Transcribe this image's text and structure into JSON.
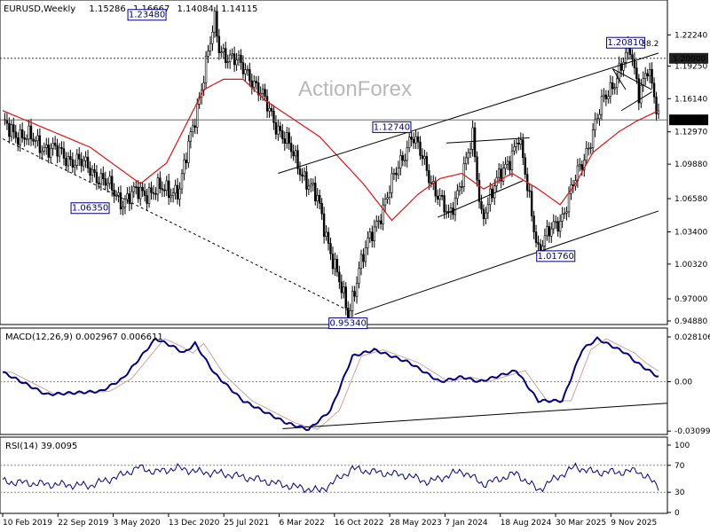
{
  "header": {
    "symbol": "EURUSD,Weekly",
    "ohlc": [
      "1.15286",
      "1.16667",
      "1.14084",
      "1.14115"
    ]
  },
  "watermark": "ActionForex",
  "colors": {
    "candles": "#000000",
    "ma": "#e01010",
    "macd": "#000080",
    "signal": "#d0a0a0",
    "rsi": "#000080",
    "box_border": "#000080"
  },
  "chart_data": [
    {
      "type": "candlestick",
      "title": "EURUSD,Weekly",
      "ylim": [
        0.9488,
        1.249
      ],
      "y_ticks": [
        "1.22240",
        "1.19250",
        "1.16140",
        "1.12970",
        "1.09880",
        "1.06580",
        "1.03400",
        "1.00320",
        "0.97000",
        "0.94880"
      ],
      "x_labels": [
        "10 Feb 2019",
        "22 Sep 2019",
        "3 May 2020",
        "13 Dec 2020",
        "25 Jul 2021",
        "6 Mar 2022",
        "16 Oct 2022",
        "28 May 2023",
        "7 Jan 2024",
        "18 Aug 2024",
        "30 Mar 2025",
        "9 Nov 2025"
      ],
      "pivot_x": [
        0,
        40,
        55,
        62,
        81,
        97,
        99,
        113,
        144,
        158,
        163,
        187,
        204,
        215,
        219,
        236,
        245,
        256
      ],
      "pivot_y": [
        1.135,
        1.095,
        1.0635,
        1.072,
        1.075,
        1.234,
        1.21,
        1.185,
        1.064,
        0.9534,
        1.0,
        1.1274,
        1.046,
        1.122,
        1.05,
        1.1235,
        1.0176,
        1.05
      ],
      "points_to_200": {
        "x": [
          256,
          265,
          275,
          287,
          291,
          295,
          300
        ],
        "y": [
          1.05,
          1.1,
          1.16,
          1.2081,
          1.17,
          1.19,
          1.1412
        ]
      },
      "ma_x": [
        0,
        40,
        63,
        75,
        92,
        101,
        110,
        120,
        145,
        165,
        178,
        190,
        200,
        210,
        220,
        233,
        245,
        255,
        262,
        270,
        282,
        290,
        300
      ],
      "ma_y": [
        1.15,
        1.115,
        1.08,
        1.1,
        1.17,
        1.18,
        1.18,
        1.16,
        1.125,
        1.08,
        1.045,
        1.07,
        1.085,
        1.09,
        1.075,
        1.09,
        1.075,
        1.06,
        1.08,
        1.11,
        1.13,
        1.14,
        1.15
      ],
      "labels": [
        {
          "text": "1.23480",
          "value": 1.2348
        },
        {
          "text": "1.06350",
          "value": 1.0635
        },
        {
          "text": "1.12740",
          "value": 1.1274
        },
        {
          "text": "0.95340",
          "value": 0.9534
        },
        {
          "text": "1.01760",
          "value": 1.0176
        },
        {
          "text": "1.20810",
          "value": 1.2081
        }
      ],
      "level_lines": [
        {
          "label": "1.20000",
          "value": 1.2,
          "style": "dotted"
        },
        {
          "label": "1.14115",
          "value": 1.14115,
          "style": "solid"
        }
      ],
      "fib_label": "38.2",
      "price_badges": [
        "1.20000",
        "1.14115"
      ]
    },
    {
      "type": "line",
      "title": "MACD(12,26,9) 0.002967 0.006611",
      "ylim": [
        -0.0309,
        0.0281
      ],
      "y_ticks": [
        "0.028106",
        "0.00",
        "-0.03099"
      ],
      "macd_x": [
        0,
        20,
        45,
        55,
        70,
        78,
        83,
        88,
        97,
        110,
        130,
        140,
        150,
        160,
        170,
        186,
        200,
        210,
        218,
        235,
        245,
        256,
        265,
        272,
        285,
        290,
        300
      ],
      "macd_y": [
        0.006,
        -0.008,
        -0.006,
        0.002,
        0.027,
        0.022,
        0.018,
        0.024,
        0.005,
        -0.012,
        -0.026,
        -0.03,
        -0.018,
        0.016,
        0.02,
        0.012,
        0.0,
        0.003,
        0.0,
        0.007,
        -0.012,
        -0.012,
        0.02,
        0.027,
        0.018,
        0.012,
        0.003
      ]
    },
    {
      "type": "line",
      "title": "RSI(14) 39.0095",
      "ylim": [
        0,
        100
      ],
      "y_ticks": [
        "100",
        "70",
        "30",
        "0"
      ],
      "rsi_x": [
        0,
        20,
        40,
        55,
        62,
        70,
        80,
        90,
        100,
        115,
        130,
        145,
        150,
        160,
        170,
        185,
        195,
        210,
        220,
        235,
        245,
        250,
        262,
        270,
        285,
        290,
        300
      ],
      "rsi_y": [
        46,
        42,
        40,
        56,
        67,
        60,
        66,
        60,
        58,
        50,
        40,
        32,
        42,
        65,
        60,
        55,
        45,
        62,
        42,
        58,
        33,
        45,
        68,
        60,
        60,
        63,
        39
      ]
    }
  ]
}
